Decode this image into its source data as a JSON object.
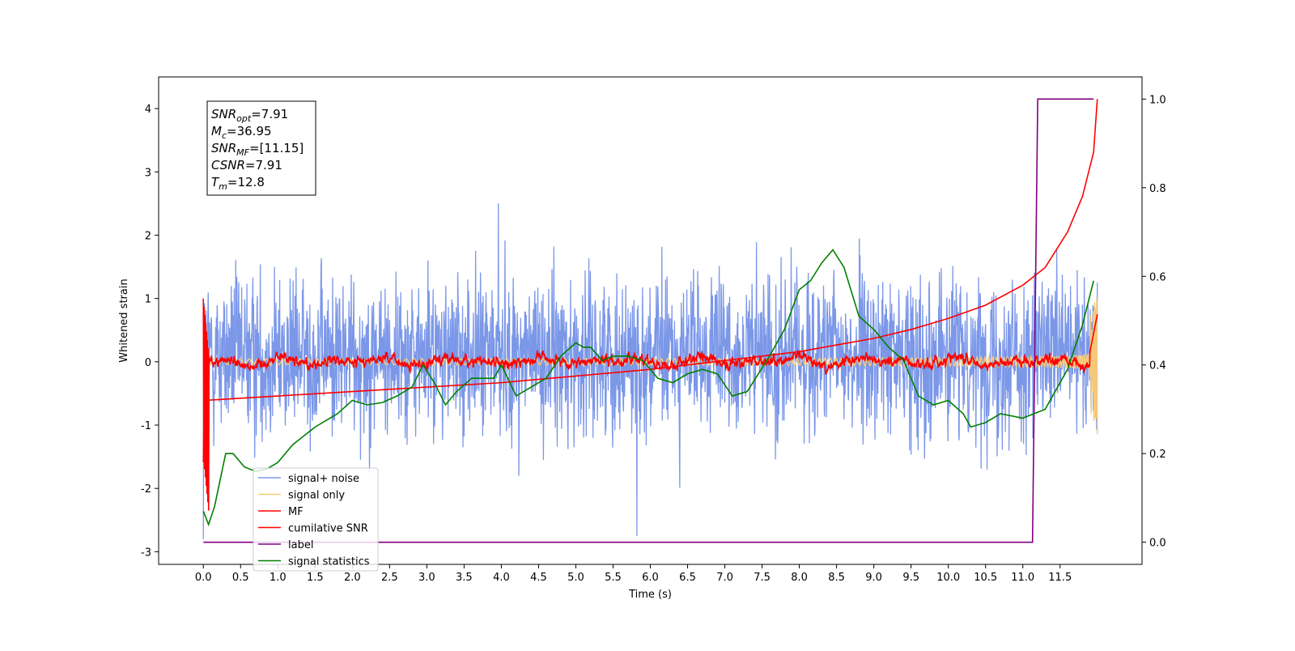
{
  "chart_data": {
    "type": "line",
    "xlabel": "Time (s)",
    "ylabel": "Whitened strain",
    "xlim": [
      -0.6,
      12.6
    ],
    "ylim": [
      -3.2,
      4.5
    ],
    "ylim_right": [
      -0.05,
      1.05
    ],
    "x_ticks": [
      "0.0",
      "0.5",
      "1.0",
      "1.5",
      "2.0",
      "2.5",
      "3.0",
      "3.5",
      "4.0",
      "4.5",
      "5.0",
      "5.5",
      "6.0",
      "6.5",
      "7.0",
      "7.5",
      "8.0",
      "8.5",
      "9.0",
      "9.5",
      "10.0",
      "10.5",
      "11.0",
      "11.5"
    ],
    "y_ticks": [
      -3,
      -2,
      -1,
      0,
      1,
      2,
      3,
      4
    ],
    "y_ticks_right": [
      "0.0",
      "0.2",
      "0.4",
      "0.6",
      "0.8",
      "1.0"
    ],
    "grid": false,
    "legend_position": "lower-left",
    "info_box": {
      "lines": [
        {
          "base": "SNR",
          "sub": "opt",
          "value": "=7.91"
        },
        {
          "base": "M",
          "sub": "c",
          "value": "=36.95"
        },
        {
          "base": "SNR",
          "sub": "MF",
          "value": "=[11.15]"
        },
        {
          "base": "CSNR",
          "sub": "",
          "value": "=7.91"
        },
        {
          "base": "T",
          "sub": "m",
          "value": "=12.8"
        }
      ]
    },
    "series": [
      {
        "name": "signal+ noise",
        "color": "#7b97e8",
        "axis": "left",
        "kind": "noise",
        "x_range": [
          0.0,
          12.0
        ],
        "band": [
          -1.4,
          1.6
        ],
        "peaks": [
          2.5,
          -2.75
        ]
      },
      {
        "name": "signal only",
        "color": "#f5c97a",
        "axis": "left",
        "kind": "chirp",
        "x_range": [
          0.0,
          12.0
        ]
      },
      {
        "name": "MF",
        "color": "#ff0000",
        "axis": "left",
        "kind": "mf",
        "x_range": [
          0.0,
          12.0
        ]
      },
      {
        "name": "cumilative SNR",
        "color": "#ff0000",
        "axis": "right",
        "x": [
          0.0,
          0.01,
          1.0,
          2.0,
          3.0,
          4.0,
          5.0,
          6.0,
          7.0,
          7.5,
          8.0,
          8.5,
          9.0,
          9.5,
          10.0,
          10.5,
          11.0,
          11.3,
          11.6,
          11.8,
          11.95,
          12.0
        ],
        "y": [
          0.18,
          0.32,
          0.33,
          0.34,
          0.35,
          0.36,
          0.375,
          0.39,
          0.41,
          0.42,
          0.43,
          0.445,
          0.46,
          0.48,
          0.505,
          0.535,
          0.58,
          0.62,
          0.7,
          0.78,
          0.88,
          1.0
        ]
      },
      {
        "name": "label",
        "color": "#800080",
        "axis": "right",
        "x": [
          0.0,
          11.13,
          11.2,
          11.95
        ],
        "y": [
          0.0,
          0.0,
          1.0,
          1.0
        ]
      },
      {
        "name": "signal statistics",
        "color": "#008000",
        "axis": "right",
        "x": [
          0.0,
          0.07,
          0.15,
          0.3,
          0.4,
          0.55,
          0.7,
          0.85,
          1.0,
          1.2,
          1.5,
          1.8,
          2.0,
          2.2,
          2.4,
          2.6,
          2.8,
          2.95,
          3.1,
          3.25,
          3.4,
          3.6,
          3.9,
          4.0,
          4.2,
          4.4,
          4.6,
          4.8,
          5.0,
          5.1,
          5.2,
          5.35,
          5.5,
          5.7,
          5.9,
          6.1,
          6.3,
          6.5,
          6.7,
          6.9,
          7.1,
          7.3,
          7.6,
          7.8,
          8.0,
          8.15,
          8.3,
          8.45,
          8.6,
          8.8,
          9.0,
          9.2,
          9.4,
          9.6,
          9.8,
          10.0,
          10.2,
          10.3,
          10.5,
          10.7,
          11.0,
          11.3,
          11.6,
          11.8,
          11.95
        ],
        "y": [
          0.07,
          0.04,
          0.08,
          0.2,
          0.2,
          0.17,
          0.16,
          0.165,
          0.18,
          0.22,
          0.26,
          0.29,
          0.32,
          0.31,
          0.315,
          0.33,
          0.35,
          0.4,
          0.36,
          0.31,
          0.34,
          0.37,
          0.37,
          0.4,
          0.33,
          0.35,
          0.37,
          0.42,
          0.45,
          0.44,
          0.44,
          0.41,
          0.42,
          0.42,
          0.41,
          0.37,
          0.36,
          0.38,
          0.39,
          0.38,
          0.33,
          0.34,
          0.42,
          0.48,
          0.57,
          0.59,
          0.63,
          0.66,
          0.62,
          0.51,
          0.48,
          0.44,
          0.41,
          0.33,
          0.31,
          0.32,
          0.29,
          0.26,
          0.27,
          0.29,
          0.28,
          0.3,
          0.39,
          0.49,
          0.59
        ]
      }
    ]
  }
}
